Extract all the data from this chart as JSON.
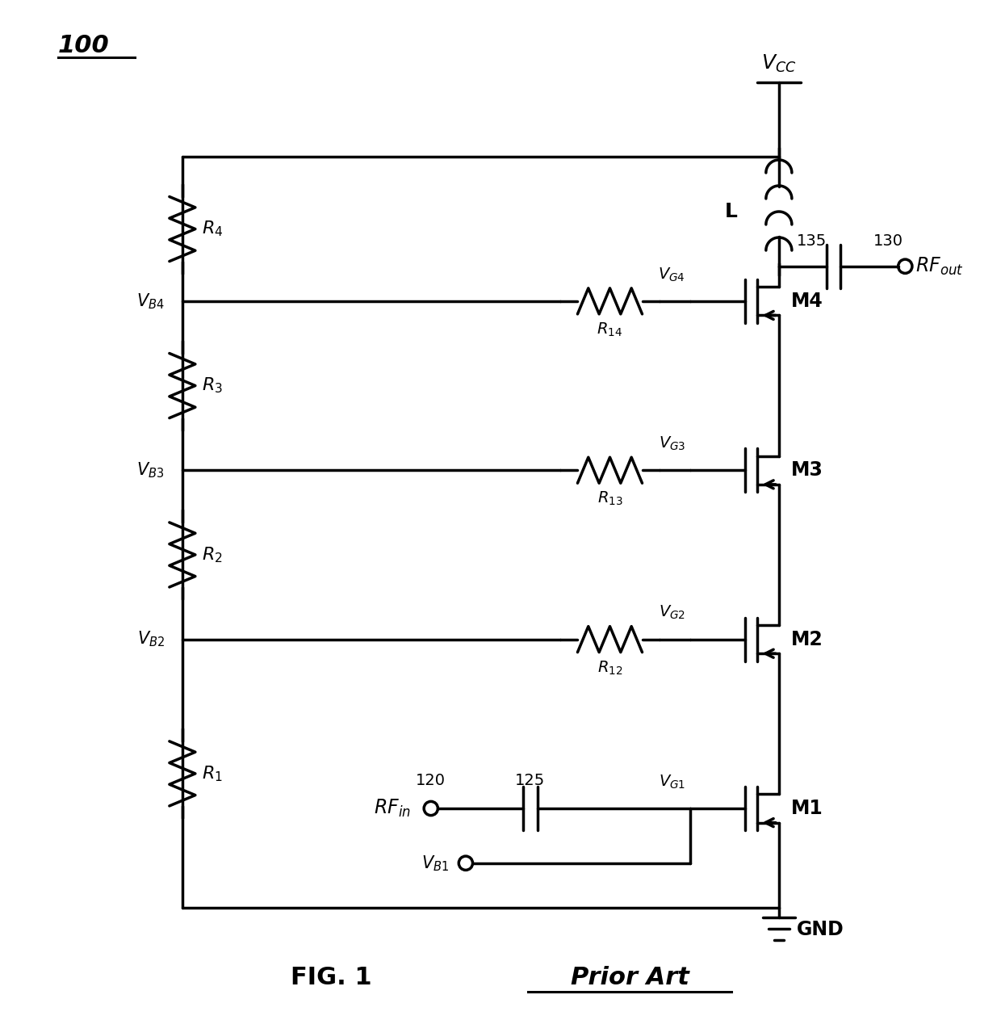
{
  "title": "100",
  "fig_label": "FIG. 1",
  "prior_art": "Prior Art",
  "background_color": "#ffffff",
  "line_color": "#000000",
  "line_width": 2.5,
  "figsize": [
    12.4,
    12.63
  ],
  "dpi": 100
}
